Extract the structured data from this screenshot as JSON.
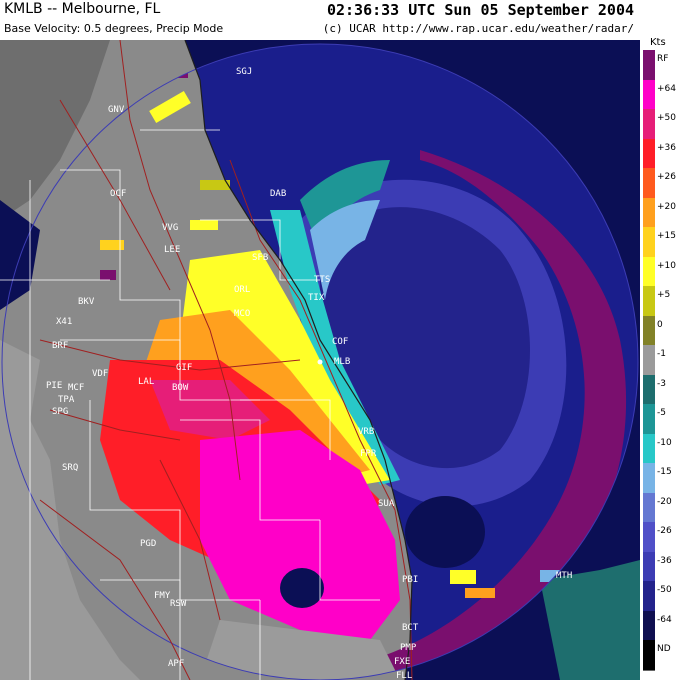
{
  "header": {
    "station": "KMLB -- Melbourne, FL",
    "product": "Base Velocity: 0.5 degrees, Precip Mode",
    "datetime": "02:36:33 UTC Sun 05 September 2004",
    "credit": "(c) UCAR  http://www.rap.ucar.edu/weather/radar/"
  },
  "legend": {
    "units": "Kts",
    "items": [
      {
        "label": "RF",
        "color": "#7a0f6e"
      },
      {
        "label": "+64",
        "color": "#ff00c8"
      },
      {
        "label": "+50",
        "color": "#e61e78"
      },
      {
        "label": "+36",
        "color": "#ff1e28"
      },
      {
        "label": "+26",
        "color": "#ff5a1e"
      },
      {
        "label": "+20",
        "color": "#ffa01e"
      },
      {
        "label": "+15",
        "color": "#ffd21e"
      },
      {
        "label": "+10",
        "color": "#ffff28"
      },
      {
        "label": "+5",
        "color": "#c8c814"
      },
      {
        "label": "0",
        "color": "#828228"
      },
      {
        "label": "-1",
        "color": "#9b9b9b"
      },
      {
        "label": "-3",
        "color": "#1e6e6e"
      },
      {
        "label": "-5",
        "color": "#1e9696"
      },
      {
        "label": "-10",
        "color": "#28c8c8"
      },
      {
        "label": "-15",
        "color": "#78b4e6"
      },
      {
        "label": "-20",
        "color": "#6478d2"
      },
      {
        "label": "-26",
        "color": "#5050c8"
      },
      {
        "label": "-36",
        "color": "#3c3cb4"
      },
      {
        "label": "-50",
        "color": "#23238c"
      },
      {
        "label": "-64",
        "color": "#0f0f50"
      },
      {
        "label": "ND",
        "color": "#000000"
      }
    ]
  },
  "map": {
    "stations": [
      "SGJ",
      "GNV",
      "OCF",
      "DAB",
      "VVG",
      "LEE",
      "SFB",
      "TTS",
      "TIX",
      "ORL",
      "BKV",
      "MCO",
      "X41",
      "BRF",
      "COF",
      "MLB",
      "VDF",
      "GIF",
      "LAL",
      "BOW",
      "PIE",
      "MCF",
      "TPA",
      "SPG",
      "VRB",
      "FPR",
      "SRQ",
      "SUA",
      "PGD",
      "PBI",
      "FMY",
      "RSW",
      "BCT",
      "PMP",
      "FXE",
      "APF",
      "FLL",
      "MTH"
    ]
  }
}
